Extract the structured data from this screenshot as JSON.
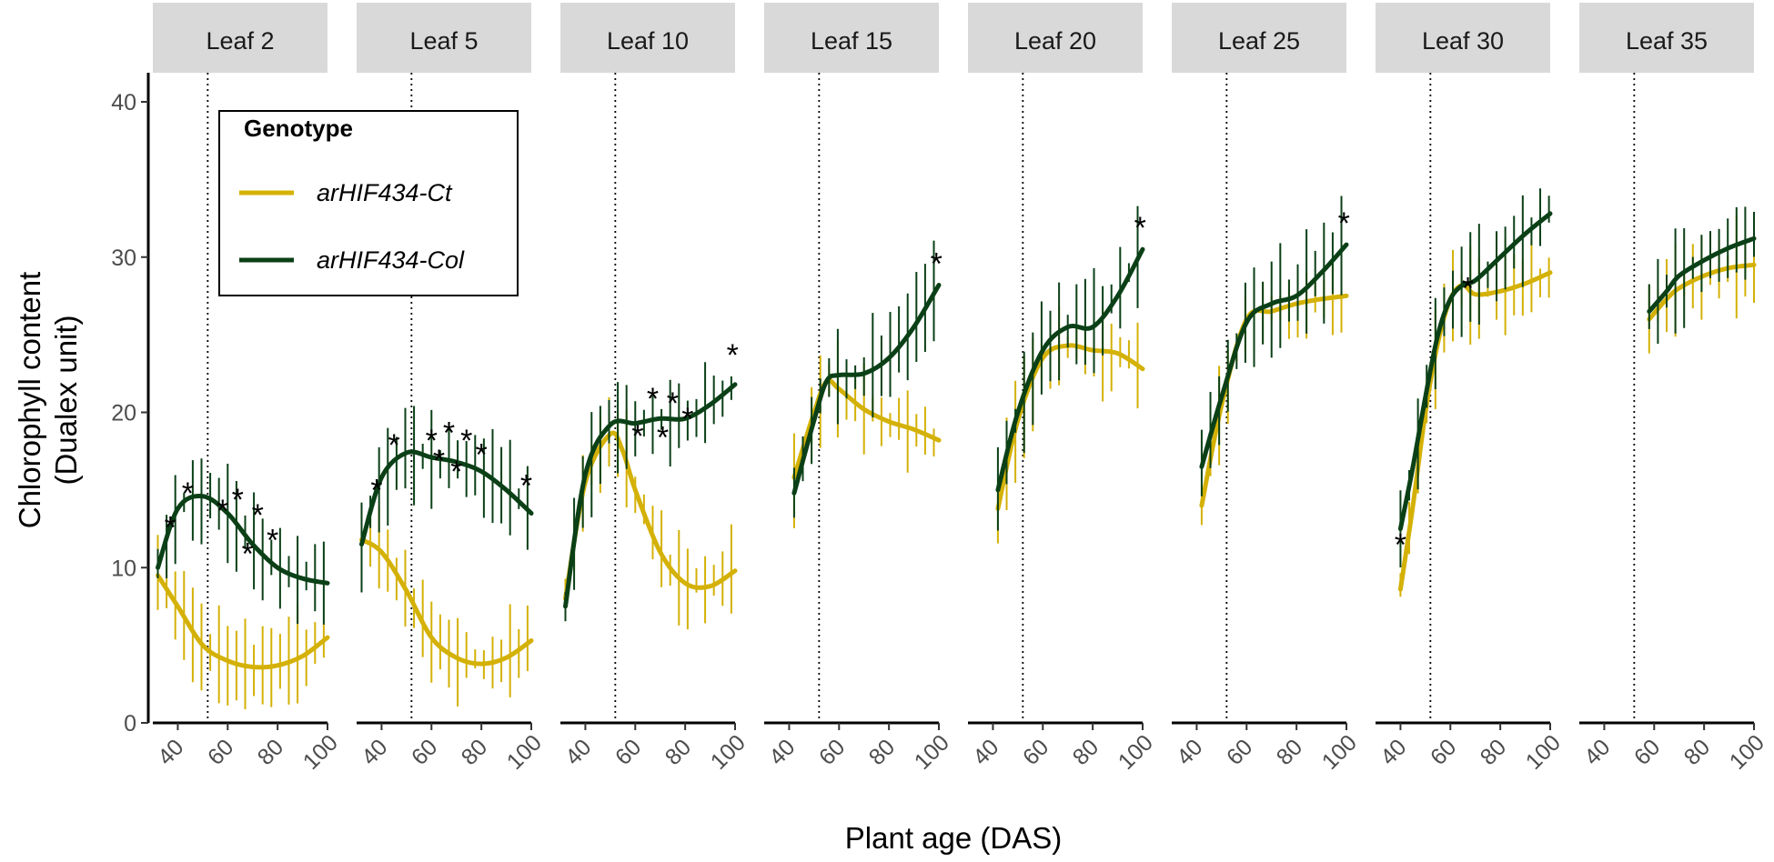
{
  "chart_data": {
    "type": "line",
    "subtype": "faceted smoothed line chart with error bars",
    "xlabel": "Plant age (DAS)",
    "ylabel_lines": [
      "Chlorophyll content",
      "(Dualex unit)"
    ],
    "xlim": [
      30,
      100
    ],
    "ylim": [
      0,
      40
    ],
    "x_ticks": [
      40,
      60,
      80,
      100
    ],
    "y_ticks": [
      0,
      10,
      20,
      30,
      40
    ],
    "reference_line_x": 52,
    "reference_line_style": "dotted",
    "legend": {
      "title": "Genotype",
      "placement": "top-left of first panel",
      "entries": [
        {
          "label": "arHIF434-Ct",
          "color": "#d4b106"
        },
        {
          "label": "arHIF434-Col",
          "color": "#0b4017"
        }
      ]
    },
    "significance_marker": "*",
    "facets": [
      {
        "label": "Leaf 2",
        "series": [
          {
            "name": "arHIF434-Ct",
            "x": [
              32,
              40,
              50,
              60,
              70,
              80,
              90,
              100
            ],
            "y": [
              9.5,
              7.5,
              5.0,
              4.0,
              3.6,
              3.7,
              4.3,
              5.5
            ]
          },
          {
            "name": "arHIF434-Col",
            "x": [
              32,
              40,
              50,
              60,
              70,
              80,
              90,
              100
            ],
            "y": [
              10.0,
              13.8,
              14.6,
              13.5,
              11.5,
              10.0,
              9.3,
              9.0
            ]
          }
        ],
        "stars": [
          {
            "x": 37,
            "y": 13.2
          },
          {
            "x": 44,
            "y": 15.4
          },
          {
            "x": 58,
            "y": 14.3
          },
          {
            "x": 64,
            "y": 15.0
          },
          {
            "x": 68,
            "y": 11.5
          },
          {
            "x": 72,
            "y": 14.0
          },
          {
            "x": 78,
            "y": 12.4
          }
        ]
      },
      {
        "label": "Leaf 5",
        "series": [
          {
            "name": "arHIF434-Ct",
            "x": [
              32,
              40,
              50,
              60,
              70,
              80,
              90,
              100
            ],
            "y": [
              11.8,
              11.0,
              8.5,
              5.5,
              4.2,
              3.8,
              4.2,
              5.3
            ]
          },
          {
            "name": "arHIF434-Col",
            "x": [
              32,
              40,
              50,
              60,
              70,
              80,
              90,
              100
            ],
            "y": [
              11.5,
              15.8,
              17.4,
              17.1,
              16.8,
              16.2,
              15.0,
              13.5
            ]
          }
        ],
        "stars": [
          {
            "x": 38,
            "y": 15.6
          },
          {
            "x": 45,
            "y": 18.5
          },
          {
            "x": 60,
            "y": 18.8
          },
          {
            "x": 63,
            "y": 17.5
          },
          {
            "x": 67,
            "y": 19.3
          },
          {
            "x": 70,
            "y": 16.8
          },
          {
            "x": 74,
            "y": 18.8
          },
          {
            "x": 80,
            "y": 17.9
          },
          {
            "x": 98,
            "y": 15.9
          }
        ]
      },
      {
        "label": "Leaf 10",
        "series": [
          {
            "name": "arHIF434-Ct",
            "x": [
              32,
              40,
              50,
              55,
              60,
              70,
              80,
              90,
              100
            ],
            "y": [
              8.0,
              15.5,
              18.6,
              17.5,
              15.0,
              11.0,
              9.0,
              8.8,
              9.8
            ]
          },
          {
            "name": "arHIF434-Col",
            "x": [
              32,
              40,
              50,
              60,
              70,
              80,
              90,
              100
            ],
            "y": [
              7.5,
              16.0,
              19.2,
              19.3,
              19.6,
              19.6,
              20.5,
              21.8
            ]
          }
        ],
        "stars": [
          {
            "x": 61,
            "y": 19.1
          },
          {
            "x": 67,
            "y": 21.5
          },
          {
            "x": 71,
            "y": 19.0
          },
          {
            "x": 75,
            "y": 21.2
          },
          {
            "x": 81,
            "y": 20.2
          },
          {
            "x": 99,
            "y": 24.3
          }
        ]
      },
      {
        "label": "Leaf 15",
        "series": [
          {
            "name": "arHIF434-Ct",
            "x": [
              42,
              50,
              55,
              60,
              70,
              80,
              90,
              100
            ],
            "y": [
              15.8,
              20.0,
              22.0,
              21.5,
              20.2,
              19.4,
              18.9,
              18.2
            ]
          },
          {
            "name": "arHIF434-Col",
            "x": [
              42,
              50,
              55,
              60,
              70,
              80,
              90,
              100
            ],
            "y": [
              14.8,
              19.5,
              22.0,
              22.4,
              22.5,
              23.5,
              25.5,
              28.2
            ]
          }
        ],
        "stars": [
          {
            "x": 99,
            "y": 30.2
          }
        ]
      },
      {
        "label": "Leaf 20",
        "series": [
          {
            "name": "arHIF434-Ct",
            "x": [
              42,
              50,
              60,
              70,
              80,
              90,
              100
            ],
            "y": [
              13.8,
              19.5,
              23.5,
              24.3,
              24.0,
              23.8,
              22.8
            ]
          },
          {
            "name": "arHIF434-Col",
            "x": [
              42,
              50,
              60,
              70,
              80,
              90,
              100
            ],
            "y": [
              15.0,
              20.0,
              24.0,
              25.5,
              25.5,
              27.5,
              30.5
            ]
          }
        ],
        "stars": [
          {
            "x": 99,
            "y": 32.5
          }
        ]
      },
      {
        "label": "Leaf 25",
        "series": [
          {
            "name": "arHIF434-Ct",
            "x": [
              42,
              50,
              60,
              70,
              80,
              90,
              100
            ],
            "y": [
              14.0,
              20.5,
              26.0,
              26.5,
              27.0,
              27.3,
              27.5
            ]
          },
          {
            "name": "arHIF434-Col",
            "x": [
              42,
              50,
              60,
              70,
              80,
              90,
              100
            ],
            "y": [
              16.5,
              21.0,
              25.8,
              27.0,
              27.5,
              29.0,
              30.8
            ]
          }
        ],
        "stars": [
          {
            "x": 99,
            "y": 32.8
          }
        ]
      },
      {
        "label": "Leaf 30",
        "series": [
          {
            "name": "arHIF434-Ct",
            "x": [
              40,
              45,
              50,
              55,
              60,
              65,
              70,
              80,
              90,
              100
            ],
            "y": [
              8.6,
              14.0,
              20.0,
              24.5,
              27.3,
              28.2,
              27.6,
              27.8,
              28.3,
              29.0
            ]
          },
          {
            "name": "arHIF434-Col",
            "x": [
              40,
              45,
              50,
              55,
              60,
              65,
              70,
              80,
              90,
              100
            ],
            "y": [
              12.5,
              16.5,
              21.0,
              25.0,
              27.3,
              28.2,
              28.5,
              30.0,
              31.5,
              32.8
            ]
          }
        ],
        "stars": [
          {
            "x": 40,
            "y": 12.1
          },
          {
            "x": 67,
            "y": 28.6
          }
        ]
      },
      {
        "label": "Leaf 35",
        "series": [
          {
            "name": "arHIF434-Ct",
            "x": [
              58,
              65,
              70,
              80,
              90,
              100
            ],
            "y": [
              26.0,
              27.3,
              28.0,
              28.8,
              29.3,
              29.5
            ]
          },
          {
            "name": "arHIF434-Col",
            "x": [
              58,
              65,
              70,
              80,
              90,
              100
            ],
            "y": [
              26.5,
              27.8,
              28.8,
              29.8,
              30.6,
              31.2
            ]
          }
        ],
        "stars": []
      }
    ]
  }
}
